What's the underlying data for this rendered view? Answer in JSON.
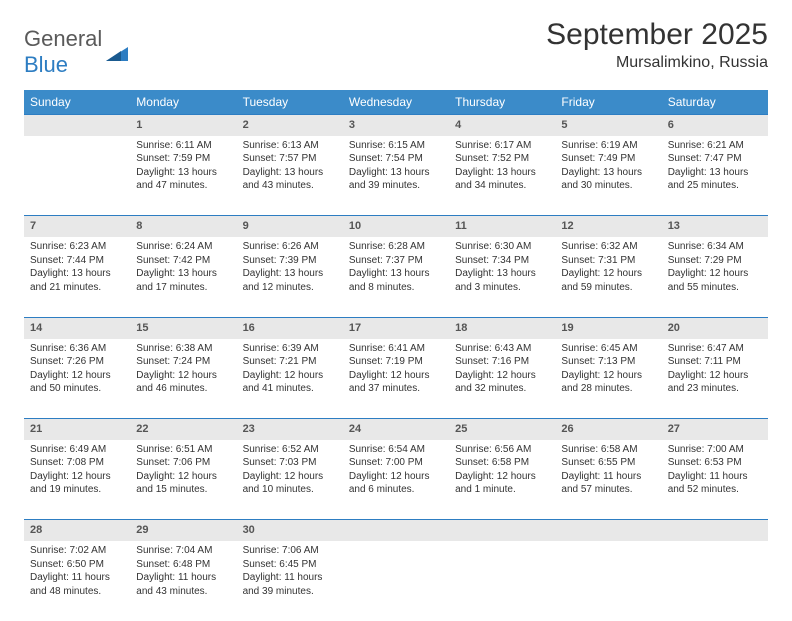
{
  "brand": {
    "part1": "General",
    "part2": "Blue"
  },
  "title": "September 2025",
  "location": "Mursalimkino, Russia",
  "colors": {
    "header_bg": "#3b8bc9",
    "header_text": "#ffffff",
    "daynum_bg": "#e8e8e8",
    "daynum_border": "#2d7dc2",
    "text": "#333333",
    "brand_gray": "#5a5a5a",
    "brand_blue": "#2d7dc2",
    "page_bg": "#ffffff"
  },
  "weekdays": [
    "Sunday",
    "Monday",
    "Tuesday",
    "Wednesday",
    "Thursday",
    "Friday",
    "Saturday"
  ],
  "weeks": [
    {
      "nums": [
        "",
        "1",
        "2",
        "3",
        "4",
        "5",
        "6"
      ],
      "cells": [
        null,
        {
          "sunrise": "Sunrise: 6:11 AM",
          "sunset": "Sunset: 7:59 PM",
          "daylight": "Daylight: 13 hours and 47 minutes."
        },
        {
          "sunrise": "Sunrise: 6:13 AM",
          "sunset": "Sunset: 7:57 PM",
          "daylight": "Daylight: 13 hours and 43 minutes."
        },
        {
          "sunrise": "Sunrise: 6:15 AM",
          "sunset": "Sunset: 7:54 PM",
          "daylight": "Daylight: 13 hours and 39 minutes."
        },
        {
          "sunrise": "Sunrise: 6:17 AM",
          "sunset": "Sunset: 7:52 PM",
          "daylight": "Daylight: 13 hours and 34 minutes."
        },
        {
          "sunrise": "Sunrise: 6:19 AM",
          "sunset": "Sunset: 7:49 PM",
          "daylight": "Daylight: 13 hours and 30 minutes."
        },
        {
          "sunrise": "Sunrise: 6:21 AM",
          "sunset": "Sunset: 7:47 PM",
          "daylight": "Daylight: 13 hours and 25 minutes."
        }
      ]
    },
    {
      "nums": [
        "7",
        "8",
        "9",
        "10",
        "11",
        "12",
        "13"
      ],
      "cells": [
        {
          "sunrise": "Sunrise: 6:23 AM",
          "sunset": "Sunset: 7:44 PM",
          "daylight": "Daylight: 13 hours and 21 minutes."
        },
        {
          "sunrise": "Sunrise: 6:24 AM",
          "sunset": "Sunset: 7:42 PM",
          "daylight": "Daylight: 13 hours and 17 minutes."
        },
        {
          "sunrise": "Sunrise: 6:26 AM",
          "sunset": "Sunset: 7:39 PM",
          "daylight": "Daylight: 13 hours and 12 minutes."
        },
        {
          "sunrise": "Sunrise: 6:28 AM",
          "sunset": "Sunset: 7:37 PM",
          "daylight": "Daylight: 13 hours and 8 minutes."
        },
        {
          "sunrise": "Sunrise: 6:30 AM",
          "sunset": "Sunset: 7:34 PM",
          "daylight": "Daylight: 13 hours and 3 minutes."
        },
        {
          "sunrise": "Sunrise: 6:32 AM",
          "sunset": "Sunset: 7:31 PM",
          "daylight": "Daylight: 12 hours and 59 minutes."
        },
        {
          "sunrise": "Sunrise: 6:34 AM",
          "sunset": "Sunset: 7:29 PM",
          "daylight": "Daylight: 12 hours and 55 minutes."
        }
      ]
    },
    {
      "nums": [
        "14",
        "15",
        "16",
        "17",
        "18",
        "19",
        "20"
      ],
      "cells": [
        {
          "sunrise": "Sunrise: 6:36 AM",
          "sunset": "Sunset: 7:26 PM",
          "daylight": "Daylight: 12 hours and 50 minutes."
        },
        {
          "sunrise": "Sunrise: 6:38 AM",
          "sunset": "Sunset: 7:24 PM",
          "daylight": "Daylight: 12 hours and 46 minutes."
        },
        {
          "sunrise": "Sunrise: 6:39 AM",
          "sunset": "Sunset: 7:21 PM",
          "daylight": "Daylight: 12 hours and 41 minutes."
        },
        {
          "sunrise": "Sunrise: 6:41 AM",
          "sunset": "Sunset: 7:19 PM",
          "daylight": "Daylight: 12 hours and 37 minutes."
        },
        {
          "sunrise": "Sunrise: 6:43 AM",
          "sunset": "Sunset: 7:16 PM",
          "daylight": "Daylight: 12 hours and 32 minutes."
        },
        {
          "sunrise": "Sunrise: 6:45 AM",
          "sunset": "Sunset: 7:13 PM",
          "daylight": "Daylight: 12 hours and 28 minutes."
        },
        {
          "sunrise": "Sunrise: 6:47 AM",
          "sunset": "Sunset: 7:11 PM",
          "daylight": "Daylight: 12 hours and 23 minutes."
        }
      ]
    },
    {
      "nums": [
        "21",
        "22",
        "23",
        "24",
        "25",
        "26",
        "27"
      ],
      "cells": [
        {
          "sunrise": "Sunrise: 6:49 AM",
          "sunset": "Sunset: 7:08 PM",
          "daylight": "Daylight: 12 hours and 19 minutes."
        },
        {
          "sunrise": "Sunrise: 6:51 AM",
          "sunset": "Sunset: 7:06 PM",
          "daylight": "Daylight: 12 hours and 15 minutes."
        },
        {
          "sunrise": "Sunrise: 6:52 AM",
          "sunset": "Sunset: 7:03 PM",
          "daylight": "Daylight: 12 hours and 10 minutes."
        },
        {
          "sunrise": "Sunrise: 6:54 AM",
          "sunset": "Sunset: 7:00 PM",
          "daylight": "Daylight: 12 hours and 6 minutes."
        },
        {
          "sunrise": "Sunrise: 6:56 AM",
          "sunset": "Sunset: 6:58 PM",
          "daylight": "Daylight: 12 hours and 1 minute."
        },
        {
          "sunrise": "Sunrise: 6:58 AM",
          "sunset": "Sunset: 6:55 PM",
          "daylight": "Daylight: 11 hours and 57 minutes."
        },
        {
          "sunrise": "Sunrise: 7:00 AM",
          "sunset": "Sunset: 6:53 PM",
          "daylight": "Daylight: 11 hours and 52 minutes."
        }
      ]
    },
    {
      "nums": [
        "28",
        "29",
        "30",
        "",
        "",
        "",
        ""
      ],
      "cells": [
        {
          "sunrise": "Sunrise: 7:02 AM",
          "sunset": "Sunset: 6:50 PM",
          "daylight": "Daylight: 11 hours and 48 minutes."
        },
        {
          "sunrise": "Sunrise: 7:04 AM",
          "sunset": "Sunset: 6:48 PM",
          "daylight": "Daylight: 11 hours and 43 minutes."
        },
        {
          "sunrise": "Sunrise: 7:06 AM",
          "sunset": "Sunset: 6:45 PM",
          "daylight": "Daylight: 11 hours and 39 minutes."
        },
        null,
        null,
        null,
        null
      ]
    }
  ]
}
